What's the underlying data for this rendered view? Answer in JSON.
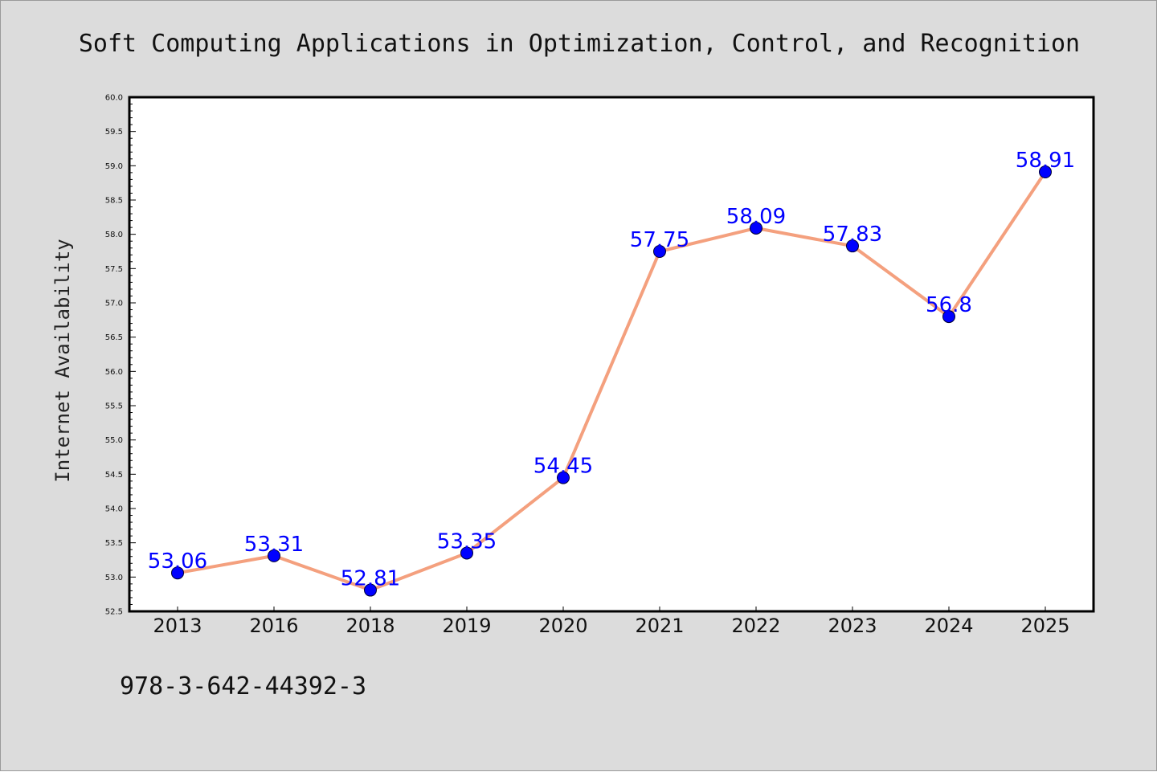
{
  "isbn": "978-3-642-44392-3",
  "colors": {
    "background": "#dcdcdc",
    "plot_bg": "#ffffff",
    "line": "#f4a07e",
    "marker": "#0000ff",
    "label": "#0000ff"
  },
  "chart_data": {
    "type": "line",
    "title": "Soft Computing Applications in Optimization, Control, and Recognition",
    "xlabel": "",
    "ylabel": "Internet Availability",
    "categories": [
      "2013",
      "2016",
      "2018",
      "2019",
      "2020",
      "2021",
      "2022",
      "2023",
      "2024",
      "2025"
    ],
    "series": [
      {
        "values": [
          53.06,
          53.31,
          52.81,
          53.35,
          54.45,
          57.75,
          58.09,
          57.83,
          56.8,
          58.91
        ],
        "labels": [
          "53.06",
          "53.31",
          "52.81",
          "53.35",
          "54.45",
          "57.75",
          "58.09",
          "57.83",
          "56.8",
          "58.91"
        ]
      }
    ],
    "ylim": [
      52.5,
      60.0
    ],
    "ytick_step": 0.5,
    "grid": false,
    "legend": "none"
  }
}
